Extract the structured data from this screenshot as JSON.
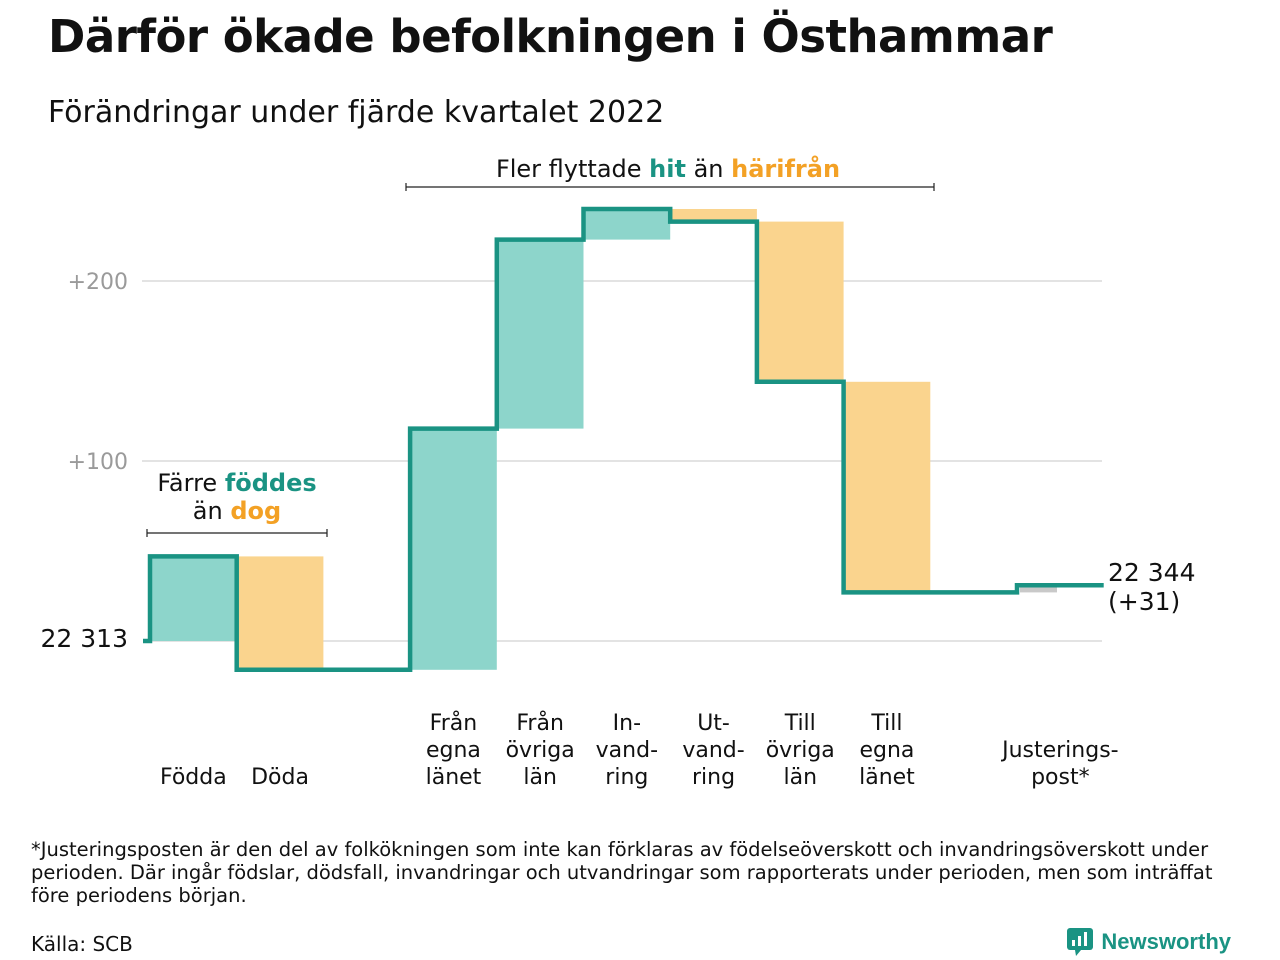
{
  "title": "Därför ökade befolkningen i Östhammar",
  "subtitle": "Förändringar under fjärde kvartalet 2022",
  "chart_data": {
    "type": "waterfall",
    "start_value": 22313,
    "start_label": "22 313",
    "end_value": 22344,
    "end_label_lines": [
      "22 344",
      "(+31)"
    ],
    "y_ticks": [
      {
        "value": 100,
        "label": "+100"
      },
      {
        "value": 200,
        "label": "+200"
      }
    ],
    "grid": true,
    "colors": {
      "increase": "#8dd5cb",
      "decrease": "#fad48e",
      "adjustment": "#c9c9c9",
      "step_line": "#1a9383",
      "hit": "#1a9383",
      "harifran": "#f3a125"
    },
    "steps": [
      {
        "label_lines": [
          "Födda"
        ],
        "change": 47,
        "kind": "increase"
      },
      {
        "label_lines": [
          "Döda"
        ],
        "change": -63,
        "kind": "decrease"
      },
      {
        "label_lines": [],
        "change": 0,
        "kind": "none"
      },
      {
        "label_lines": [
          "Från",
          "egna",
          "länet"
        ],
        "change": 134,
        "kind": "increase"
      },
      {
        "label_lines": [
          "Från",
          "övriga",
          "län"
        ],
        "change": 105,
        "kind": "increase"
      },
      {
        "label_lines": [
          "In-",
          "vand-",
          "ring"
        ],
        "change": 17,
        "kind": "increase"
      },
      {
        "label_lines": [
          "Ut-",
          "vand-",
          "ring"
        ],
        "change": -7,
        "kind": "decrease"
      },
      {
        "label_lines": [
          "Till",
          "övriga",
          "län"
        ],
        "change": -89,
        "kind": "decrease"
      },
      {
        "label_lines": [
          "Till",
          "egna",
          "länet"
        ],
        "change": -117,
        "kind": "decrease"
      },
      {
        "label_lines": [],
        "change": 0,
        "kind": "none"
      },
      {
        "label_lines": [
          "Justerings-",
          "post*"
        ],
        "change": 4,
        "kind": "adjustment"
      }
    ],
    "annotations": {
      "births": {
        "line1": "Färre",
        "hl1": "föddes",
        "line2": "än",
        "hl2": "dog"
      },
      "migration": {
        "pre": "Fler flyttade",
        "hl1": "hit",
        "mid": "än",
        "hl2": "härifrån"
      }
    }
  },
  "footnote": "*Justeringsposten är den del av folkökningen som inte kan förklaras av födelseöverskott och invandringsöverskott under perioden. Där ingår födslar, dödsfall, invandringar och utvandringar som rapporterats under perioden, men som inträffat före periodens början.",
  "source": "Källa: SCB",
  "brand": "Newsworthy"
}
